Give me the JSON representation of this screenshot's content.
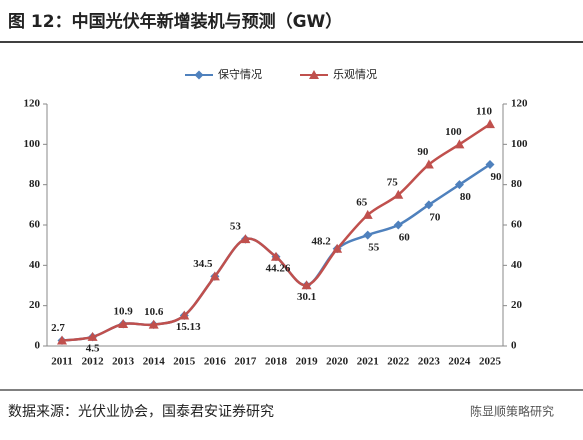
{
  "chart_data": {
    "type": "line",
    "title": "图 12：中国光伏年新增装机与预测（GW）",
    "source": "数据来源：光伏业协会，国泰君安证券研究",
    "watermark": "陈显顺策略研究",
    "categories": [
      "2011",
      "2012",
      "2013",
      "2014",
      "2015",
      "2016",
      "2017",
      "2018",
      "2019",
      "2020",
      "2021",
      "2022",
      "2023",
      "2024",
      "2025"
    ],
    "series": [
      {
        "name": "保守情况",
        "color": "#4f81bd",
        "marker": "diamond",
        "values": [
          2.7,
          4.5,
          10.9,
          10.6,
          15.13,
          34.5,
          53,
          44.26,
          30.1,
          48.2,
          55,
          60,
          70,
          80,
          90
        ]
      },
      {
        "name": "乐观情况",
        "color": "#c0504d",
        "marker": "triangle",
        "values": [
          2.7,
          4.5,
          10.9,
          10.6,
          15.13,
          34.5,
          53,
          44.26,
          30.1,
          48.2,
          65,
          75,
          90,
          100,
          110
        ]
      }
    ],
    "ylim": [
      0,
      120
    ],
    "yticks": [
      0,
      20,
      40,
      60,
      80,
      100,
      120
    ],
    "y2lim": [
      0,
      120
    ],
    "y2ticks": [
      0,
      20,
      40,
      60,
      80,
      100,
      120
    ],
    "legend": "top",
    "smooth": true
  }
}
